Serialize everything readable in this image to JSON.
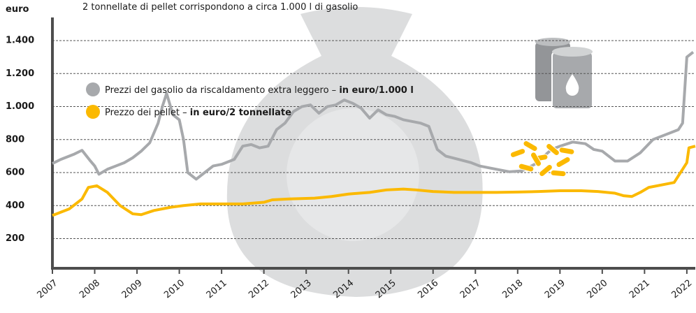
{
  "chart_data": {
    "type": "line",
    "subtitle": "2 tonnellate di pellet corrispondono a circa 1.000 l di gasolio",
    "y_label": "euro",
    "xlim": [
      2007,
      2022.2
    ],
    "xticks": [
      2007,
      2008,
      2009,
      2010,
      2011,
      2012,
      2013,
      2014,
      2015,
      2016,
      2017,
      2018,
      2019,
      2020,
      2021,
      2022
    ],
    "ylim": [
      20,
      1540
    ],
    "yticks": [
      200,
      400,
      600,
      800,
      {
        "value": 1000,
        "label": "1.000"
      },
      {
        "value": 1200,
        "label": "1.200"
      },
      {
        "value": 1400,
        "label": "1.400"
      }
    ],
    "grid": true,
    "series": [
      {
        "name": "Prezzi del gasolio da riscaldamento extra leggero – in euro/1.000 l",
        "color": "#a7a9ac",
        "x": [
          2007.0,
          2007.2,
          2007.5,
          2007.7,
          2007.9,
          2008.0,
          2008.1,
          2008.3,
          2008.5,
          2008.7,
          2008.9,
          2009.1,
          2009.3,
          2009.5,
          2009.6,
          2009.7,
          2009.85,
          2010.0,
          2010.1,
          2010.2,
          2010.4,
          2010.6,
          2010.8,
          2011.0,
          2011.3,
          2011.5,
          2011.7,
          2011.9,
          2012.1,
          2012.3,
          2012.5,
          2012.7,
          2012.9,
          2013.1,
          2013.3,
          2013.5,
          2013.7,
          2013.9,
          2014.1,
          2014.3,
          2014.5,
          2014.7,
          2014.9,
          2015.1,
          2015.3,
          2015.5,
          2015.7,
          2015.9,
          2016.1,
          2016.3,
          2016.6,
          2016.9,
          2017.1,
          2017.5,
          2017.8,
          2018.1,
          2018.4,
          2018.8,
          2019.0,
          2019.3,
          2019.6,
          2019.8,
          2020.0,
          2020.3,
          2020.6,
          2020.9,
          2021.2,
          2021.5,
          2021.8,
          2021.9,
          2022.0,
          2022.15
        ],
        "values": [
          655,
          680,
          710,
          735,
          670,
          640,
          590,
          620,
          640,
          660,
          690,
          730,
          780,
          900,
          1000,
          1080,
          950,
          920,
          800,
          600,
          560,
          600,
          640,
          650,
          680,
          760,
          770,
          750,
          760,
          860,
          900,
          970,
          1000,
          1010,
          960,
          1000,
          1010,
          1040,
          1020,
          990,
          930,
          980,
          950,
          940,
          920,
          910,
          900,
          880,
          740,
          700,
          680,
          660,
          640,
          620,
          605,
          610,
          650,
          740,
          760,
          785,
          775,
          740,
          730,
          670,
          670,
          720,
          800,
          830,
          860,
          900,
          1300,
          1330
        ]
      },
      {
        "name": "Prezzo dei pellet – in euro/2 tonnellate",
        "color": "#fbb900",
        "x": [
          2007.0,
          2007.4,
          2007.7,
          2007.85,
          2008.05,
          2008.3,
          2008.6,
          2008.9,
          2009.1,
          2009.4,
          2009.8,
          2010.1,
          2010.5,
          2011.0,
          2011.5,
          2012.0,
          2012.2,
          2012.6,
          2013.2,
          2013.6,
          2014.0,
          2014.5,
          2014.9,
          2015.3,
          2015.6,
          2016.0,
          2016.5,
          2017.0,
          2017.5,
          2018.0,
          2018.5,
          2019.0,
          2019.5,
          2019.9,
          2020.3,
          2020.5,
          2020.7,
          2020.9,
          2021.1,
          2021.5,
          2021.7,
          2021.9,
          2022.0,
          2022.05,
          2022.2
        ],
        "values": [
          340,
          380,
          440,
          510,
          520,
          480,
          400,
          350,
          345,
          370,
          390,
          400,
          410,
          410,
          410,
          420,
          435,
          440,
          445,
          455,
          470,
          480,
          495,
          500,
          495,
          485,
          480,
          480,
          480,
          482,
          485,
          490,
          490,
          485,
          475,
          460,
          455,
          480,
          510,
          530,
          540,
          620,
          660,
          750,
          760
        ]
      }
    ]
  }
}
